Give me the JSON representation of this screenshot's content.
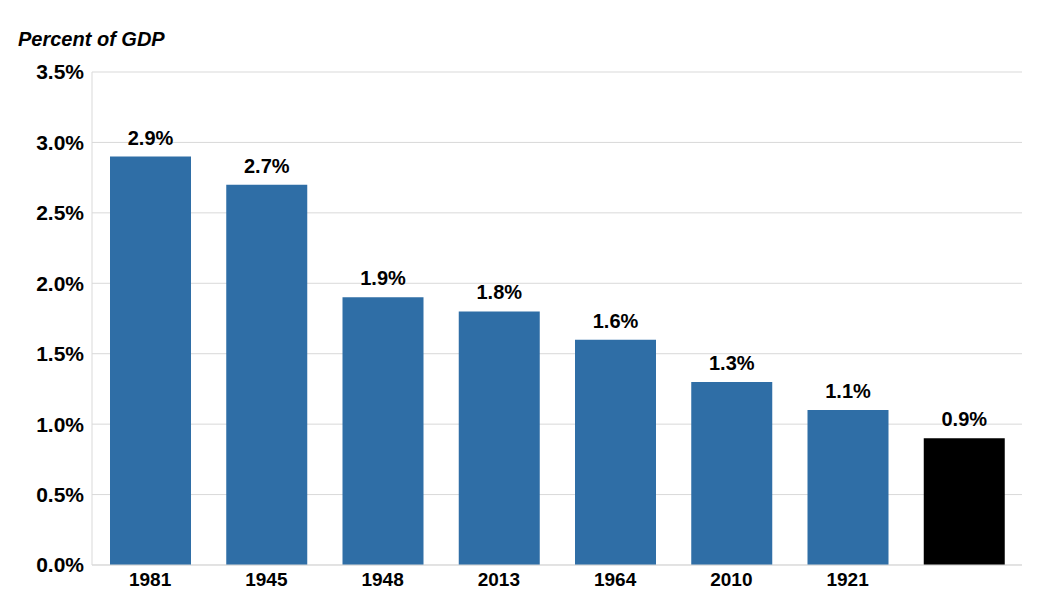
{
  "chart_data": {
    "type": "bar",
    "ylabel": "Percent of GDP",
    "categories": [
      "1981",
      "1945",
      "1948",
      "2013",
      "1964",
      "2010",
      "1921",
      null
    ],
    "values": [
      2.9,
      2.7,
      1.9,
      1.8,
      1.6,
      1.3,
      1.1,
      0.9
    ],
    "value_labels": [
      "2.9%",
      "2.7%",
      "1.9%",
      "1.8%",
      "1.6%",
      "1.3%",
      "1.1%",
      "0.9%"
    ],
    "colors": [
      "#2f6ea6",
      "#2f6ea6",
      "#2f6ea6",
      "#2f6ea6",
      "#2f6ea6",
      "#2f6ea6",
      "#2f6ea6",
      "#000000"
    ],
    "ylim": [
      0,
      3.5
    ],
    "yticks": [
      {
        "value": 0,
        "label": "0.0%"
      },
      {
        "value": 0.5,
        "label": "0.5%"
      },
      {
        "value": 1,
        "label": "1.0%"
      },
      {
        "value": 1.5,
        "label": "1.5%"
      },
      {
        "value": 2,
        "label": "2.0%"
      },
      {
        "value": 2.5,
        "label": "2.5%"
      },
      {
        "value": 3,
        "label": "3.0%"
      },
      {
        "value": 3.5,
        "label": "3.5%"
      }
    ],
    "grid": true,
    "data_labels": true
  }
}
